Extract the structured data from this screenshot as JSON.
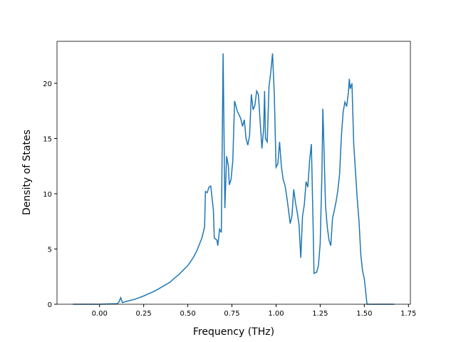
{
  "chart_data": {
    "type": "line",
    "x_label": "Frequency (THz)",
    "y_label": "Density of States",
    "x": [
      -0.15,
      0.0,
      0.1,
      0.11,
      0.12,
      0.13,
      0.15,
      0.2,
      0.25,
      0.3,
      0.33,
      0.4,
      0.42,
      0.45,
      0.5,
      0.53,
      0.55,
      0.58,
      0.595,
      0.6,
      0.61,
      0.62,
      0.63,
      0.645,
      0.65,
      0.665,
      0.67,
      0.68,
      0.69,
      0.7,
      0.71,
      0.72,
      0.73,
      0.735,
      0.745,
      0.755,
      0.765,
      0.78,
      0.8,
      0.81,
      0.82,
      0.83,
      0.84,
      0.85,
      0.86,
      0.87,
      0.88,
      0.89,
      0.9,
      0.91,
      0.92,
      0.93,
      0.935,
      0.94,
      0.95,
      0.96,
      0.97,
      0.98,
      0.99,
      1.0,
      1.01,
      1.02,
      1.03,
      1.04,
      1.05,
      1.06,
      1.07,
      1.08,
      1.09,
      1.1,
      1.11,
      1.12,
      1.13,
      1.14,
      1.15,
      1.16,
      1.17,
      1.18,
      1.19,
      1.2,
      1.21,
      1.215,
      1.23,
      1.24,
      1.25,
      1.26,
      1.265,
      1.27,
      1.28,
      1.29,
      1.3,
      1.31,
      1.32,
      1.33,
      1.34,
      1.35,
      1.36,
      1.37,
      1.38,
      1.39,
      1.4,
      1.41,
      1.415,
      1.42,
      1.43,
      1.44,
      1.45,
      1.46,
      1.47,
      1.48,
      1.49,
      1.5,
      1.51,
      1.515,
      1.6,
      1.67
    ],
    "values": [
      0,
      0,
      0.05,
      0.2,
      0.6,
      0.15,
      0.25,
      0.45,
      0.75,
      1.1,
      1.35,
      2.0,
      2.3,
      2.7,
      3.5,
      4.2,
      4.8,
      6.0,
      7.0,
      10.2,
      10.1,
      10.6,
      10.7,
      8.5,
      6.0,
      5.8,
      5.3,
      6.8,
      6.5,
      22.7,
      8.7,
      13.4,
      12.5,
      10.8,
      11.3,
      13.0,
      18.4,
      17.5,
      16.8,
      16.1,
      16.7,
      15.0,
      14.4,
      15.3,
      19.0,
      17.6,
      18.0,
      19.3,
      19.0,
      16.5,
      14.1,
      16.0,
      19.3,
      15.0,
      14.7,
      19.7,
      21.0,
      22.7,
      19.0,
      12.4,
      12.7,
      14.7,
      12.5,
      11.3,
      10.8,
      9.8,
      8.6,
      7.3,
      8.0,
      10.4,
      9.2,
      8.3,
      7.2,
      4.2,
      8.0,
      9.0,
      11.1,
      10.6,
      13.0,
      14.5,
      7.0,
      2.8,
      2.9,
      3.5,
      5.5,
      12.0,
      17.7,
      15.0,
      9.0,
      7.0,
      5.8,
      5.3,
      7.8,
      8.5,
      9.3,
      10.3,
      11.8,
      15.2,
      17.4,
      18.3,
      17.9,
      19.2,
      20.4,
      19.5,
      20.0,
      14.5,
      12.0,
      9.5,
      7.5,
      4.5,
      3.0,
      2.3,
      0.8,
      0,
      0,
      0
    ],
    "color": "#1f77b4",
    "xlim": [
      -0.241,
      1.761
    ],
    "xticks": [
      {
        "value": 0,
        "label": "0.00"
      },
      {
        "value": 0.25,
        "label": "0.25"
      },
      {
        "value": 0.5,
        "label": "0.50"
      },
      {
        "value": 0.75,
        "label": "0.75"
      },
      {
        "value": 1,
        "label": "1.00"
      },
      {
        "value": 1.25,
        "label": "1.25"
      },
      {
        "value": 1.5,
        "label": "1.50"
      },
      {
        "value": 1.75,
        "label": "1.75"
      }
    ],
    "ylim": [
      0,
      23.8
    ],
    "yticks": [
      0,
      5,
      10,
      15,
      20
    ]
  }
}
